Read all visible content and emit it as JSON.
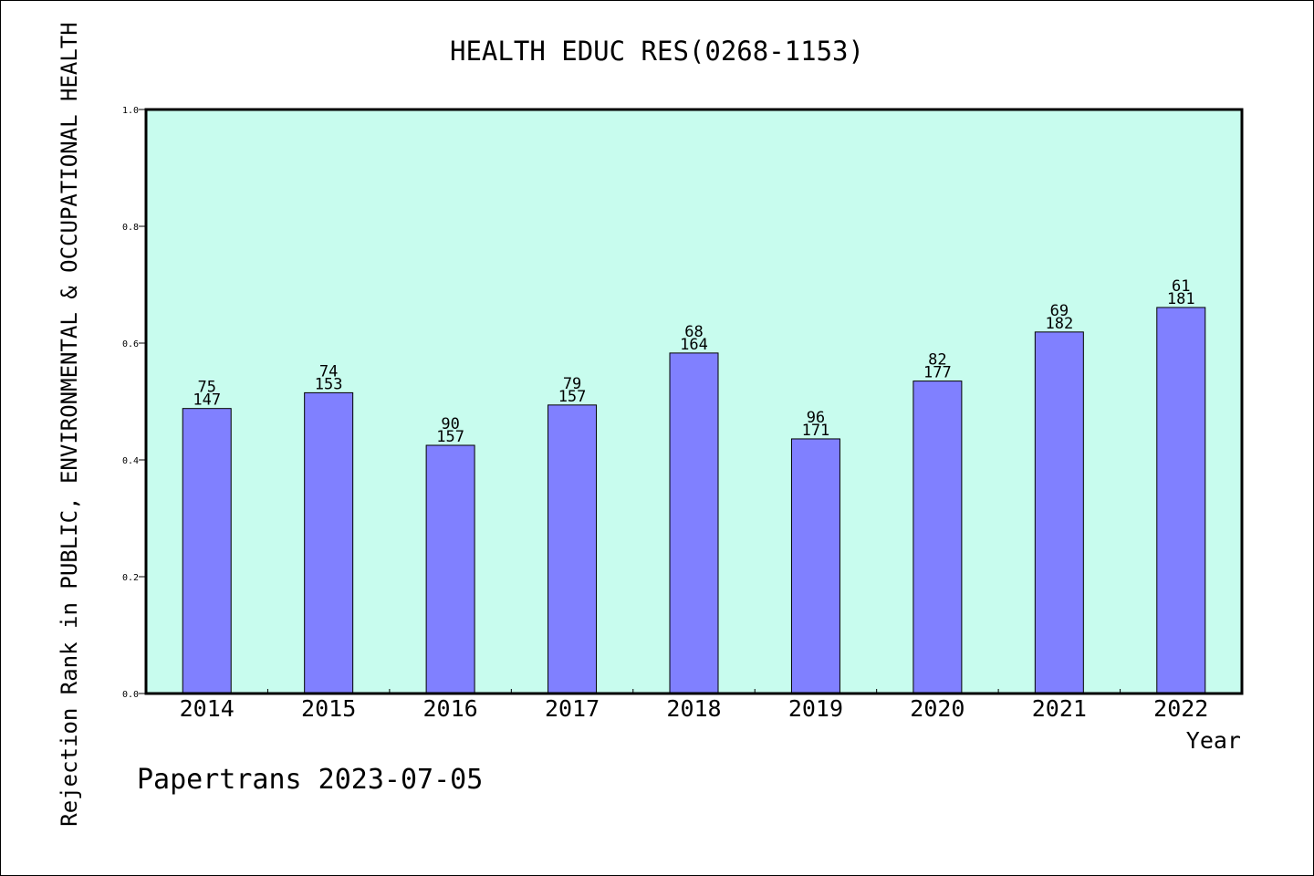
{
  "chart_data": {
    "type": "bar",
    "title": "HEALTH EDUC RES(0268-1153)",
    "xlabel": "Year",
    "ylabel": "Rejection Rank in PUBLIC, ENVIRONMENTAL & OCCUPATIONAL HEALTH",
    "ylim": [
      0,
      1.0
    ],
    "yticks": [
      "0.0",
      "0.2",
      "0.4",
      "0.6",
      "0.8",
      "1.0"
    ],
    "categories": [
      "2014",
      "2015",
      "2016",
      "2017",
      "2018",
      "2019",
      "2020",
      "2021",
      "2022"
    ],
    "values": [
      0.488,
      0.515,
      0.425,
      0.494,
      0.583,
      0.436,
      0.535,
      0.619,
      0.661
    ],
    "labels_top": [
      "75",
      "74",
      "90",
      "79",
      "68",
      "96",
      "82",
      "69",
      "61"
    ],
    "labels_bottom": [
      "147",
      "153",
      "157",
      "157",
      "164",
      "171",
      "177",
      "182",
      "181"
    ],
    "grid": false,
    "colors": {
      "plot_bg": "#c8fcee",
      "bar": "#8080ff",
      "axis": "#000000"
    }
  },
  "footer": {
    "text": "Papertrans 2023-07-05"
  }
}
